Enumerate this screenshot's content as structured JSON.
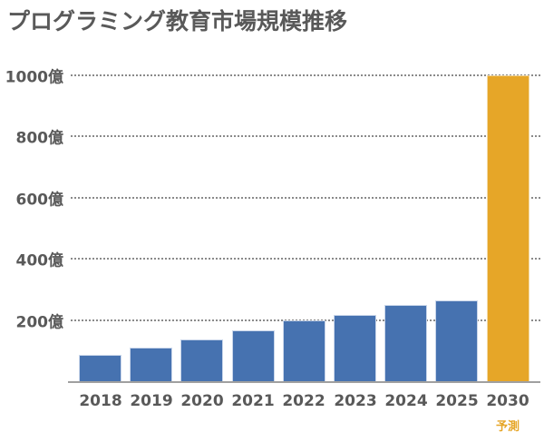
{
  "chart_data": {
    "type": "bar",
    "title": "プログラミング教育市場規模推移",
    "xlabel": "",
    "ylabel": "",
    "y_unit": "億",
    "ylim": [
      0,
      1000
    ],
    "yticks": [
      "200億",
      "400億",
      "600億",
      "800億",
      "1000億"
    ],
    "grid": true,
    "categories": [
      "2018",
      "2019",
      "2020",
      "2021",
      "2022",
      "2023",
      "2024",
      "2025",
      "2030"
    ],
    "values": [
      90,
      113,
      140,
      170,
      200,
      220,
      250,
      265,
      1000
    ],
    "annotations": [
      {
        "category": "2030",
        "text": "予測"
      }
    ],
    "colors": {
      "actual": "#4672b0",
      "forecast": "#e6a628"
    },
    "forecast_categories": [
      "2030"
    ]
  }
}
